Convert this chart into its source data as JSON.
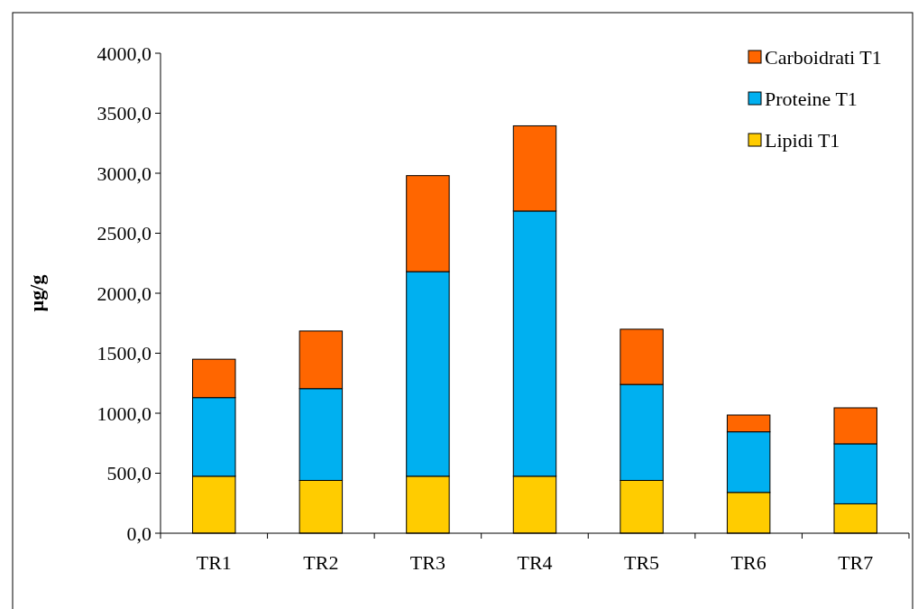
{
  "chart_data": {
    "type": "bar",
    "stacked": true,
    "ylabel": "µg/g",
    "categories": [
      "TR1",
      "TR2",
      "TR3",
      "TR4",
      "TR5",
      "TR6",
      "TR7"
    ],
    "series": [
      {
        "name": "Lipidi T1",
        "color": "#ffcc00",
        "values": [
          475,
          440,
          475,
          475,
          440,
          340,
          245
        ]
      },
      {
        "name": "Proteine T1",
        "color": "#00b0f0",
        "values": [
          655,
          765,
          1705,
          2210,
          800,
          505,
          500
        ]
      },
      {
        "name": "Carboidrati T1",
        "color": "#ff6600",
        "values": [
          320,
          480,
          800,
          710,
          460,
          140,
          300
        ]
      }
    ],
    "ylim": [
      0,
      4000
    ],
    "yticks": [
      {
        "value": 0,
        "label": "0,0"
      },
      {
        "value": 500,
        "label": "500,0"
      },
      {
        "value": 1000,
        "label": "1000,0"
      },
      {
        "value": 1500,
        "label": "1500,0"
      },
      {
        "value": 2000,
        "label": "2000,0"
      },
      {
        "value": 2500,
        "label": "2500,0"
      },
      {
        "value": 3000,
        "label": "3000,0"
      },
      {
        "value": 3500,
        "label": "3500,0"
      },
      {
        "value": 4000,
        "label": "4000,0"
      }
    ],
    "grid": false,
    "legend": "top right"
  }
}
